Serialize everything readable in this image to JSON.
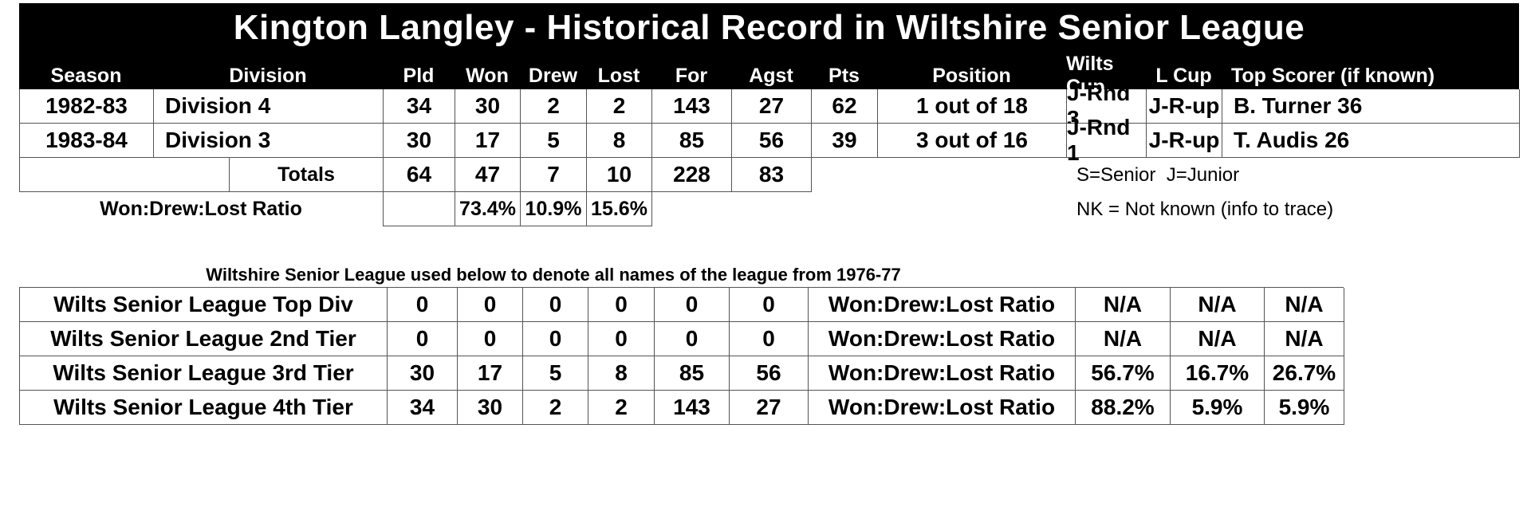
{
  "colors": {
    "header_bg": "#000000",
    "header_text": "#ffffff",
    "body_text": "#000000",
    "grid_line": "#545454"
  },
  "title": "Kington Langley - Historical Record in Wiltshire Senior League",
  "main_table": {
    "headers": [
      "Season",
      "Division",
      "Pld",
      "Won",
      "Drew",
      "Lost",
      "For",
      "Agst",
      "Pts",
      "Position",
      "Wilts Cup",
      "L Cup",
      "Top Scorer (if known)"
    ],
    "rows": [
      {
        "season": "1982-83",
        "division": "Division 4",
        "pld": "34",
        "won": "30",
        "drew": "2",
        "lost": "2",
        "for": "143",
        "agst": "27",
        "pts": "62",
        "position": "1 out of 18",
        "wilts_cup": "J-Rnd 3",
        "l_cup": "J-R-up",
        "top_scorer": "B. Turner 36"
      },
      {
        "season": "1983-84",
        "division": "Division 3",
        "pld": "30",
        "won": "17",
        "drew": "5",
        "lost": "8",
        "for": "85",
        "agst": "56",
        "pts": "39",
        "position": "3 out of 16",
        "wilts_cup": "J-Rnd 1",
        "l_cup": "J-R-up",
        "top_scorer": "T. Audis 26"
      }
    ],
    "totals": {
      "blank": "",
      "label": "Totals",
      "pld": "64",
      "won": "47",
      "drew": "7",
      "lost": "10",
      "for": "228",
      "agst": "83"
    },
    "ratio": {
      "label": "Won:Drew:Lost Ratio",
      "pld": "",
      "won": "73.4%",
      "drew": "10.9%",
      "lost": "15.6%"
    }
  },
  "notes": {
    "key_line": "S=Senior  J=Junior",
    "nk_line": "NK = Not known (info to trace)"
  },
  "league_section": {
    "title": "Wiltshire Senior League used below to denote all names of the league from 1976-77",
    "rows": [
      {
        "label": "Wilts Senior League Top Div",
        "pld": "0",
        "won": "0",
        "drew": "0",
        "lost": "0",
        "for": "0",
        "agst": "0",
        "ratio_label": "Won:Drew:Lost Ratio",
        "won_pct": "N/A",
        "drew_pct": "N/A",
        "lost_pct": "N/A"
      },
      {
        "label": "Wilts Senior League 2nd Tier",
        "pld": "0",
        "won": "0",
        "drew": "0",
        "lost": "0",
        "for": "0",
        "agst": "0",
        "ratio_label": "Won:Drew:Lost Ratio",
        "won_pct": "N/A",
        "drew_pct": "N/A",
        "lost_pct": "N/A"
      },
      {
        "label": "Wilts Senior League 3rd Tier",
        "pld": "30",
        "won": "17",
        "drew": "5",
        "lost": "8",
        "for": "85",
        "agst": "56",
        "ratio_label": "Won:Drew:Lost Ratio",
        "won_pct": "56.7%",
        "drew_pct": "16.7%",
        "lost_pct": "26.7%"
      },
      {
        "label": "Wilts Senior League 4th Tier",
        "pld": "34",
        "won": "30",
        "drew": "2",
        "lost": "2",
        "for": "143",
        "agst": "27",
        "ratio_label": "Won:Drew:Lost Ratio",
        "won_pct": "88.2%",
        "drew_pct": "5.9%",
        "lost_pct": "5.9%"
      }
    ]
  }
}
